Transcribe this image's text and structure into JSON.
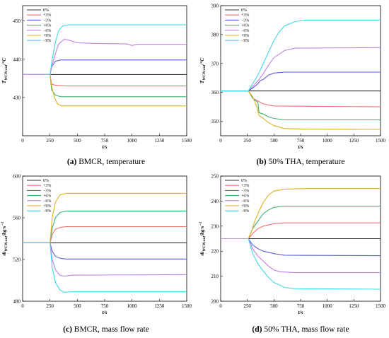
{
  "chart_data": [
    {
      "type": "line",
      "caption": {
        "letter": "(a)",
        "text": "BMCR, temperature"
      },
      "xlabel": "t/s",
      "ylabel": {
        "main": "T",
        "sub": "WCW,out",
        "unit": "/°C"
      },
      "xlim": [
        0,
        1500
      ],
      "ylim": [
        420,
        454
      ],
      "xticks": [
        0,
        250,
        500,
        750,
        1000,
        1250,
        1500
      ],
      "yticks": [
        430,
        440,
        450
      ],
      "legend_position": "top-left",
      "series": [
        {
          "name": "0%",
          "color": "#333333",
          "points": [
            [
              0,
              436
            ],
            [
              1500,
              436
            ]
          ]
        },
        {
          "name": "+3%",
          "color": "#f07070",
          "points": [
            [
              0,
              436
            ],
            [
              250,
              436
            ],
            [
              265,
              433.5
            ],
            [
              300,
              433.2
            ],
            [
              400,
              433
            ],
            [
              1500,
              433
            ]
          ]
        },
        {
          "name": "−3%",
          "color": "#5a5ad6",
          "points": [
            [
              0,
              436
            ],
            [
              250,
              436
            ],
            [
              265,
              438
            ],
            [
              300,
              439.5
            ],
            [
              350,
              439.8
            ],
            [
              1500,
              439.8
            ]
          ]
        },
        {
          "name": "+6%",
          "color": "#3cb371",
          "points": [
            [
              0,
              436
            ],
            [
              250,
              436
            ],
            [
              265,
              432
            ],
            [
              300,
              430.6
            ],
            [
              350,
              430.2
            ],
            [
              1500,
              430.2
            ]
          ]
        },
        {
          "name": "−6%",
          "color": "#c080e0",
          "points": [
            [
              0,
              436
            ],
            [
              250,
              436
            ],
            [
              275,
              439
            ],
            [
              300,
              441.5
            ],
            [
              330,
              444
            ],
            [
              380,
              445.2
            ],
            [
              420,
              445
            ],
            [
              500,
              444.3
            ],
            [
              700,
              444.1
            ],
            [
              950,
              444
            ],
            [
              1000,
              443.6
            ],
            [
              1050,
              443.9
            ],
            [
              1500,
              443.9
            ]
          ]
        },
        {
          "name": "+9%",
          "color": "#e0b020",
          "points": [
            [
              0,
              436
            ],
            [
              250,
              436
            ],
            [
              265,
              433
            ],
            [
              290,
              430
            ],
            [
              320,
              428.3
            ],
            [
              360,
              427.8
            ],
            [
              1500,
              427.8
            ]
          ]
        },
        {
          "name": "−9%",
          "color": "#40d8e8",
          "points": [
            [
              0,
              436
            ],
            [
              250,
              436
            ],
            [
              270,
              440
            ],
            [
              300,
              444.5
            ],
            [
              330,
              447.5
            ],
            [
              370,
              448.8
            ],
            [
              420,
              449
            ],
            [
              1500,
              449
            ]
          ]
        }
      ]
    },
    {
      "type": "line",
      "caption": {
        "letter": "(b)",
        "text": "50% THA, temperature"
      },
      "xlabel": "t/s",
      "ylabel": {
        "main": "T",
        "sub": "WCW,out",
        "unit": "/°C"
      },
      "xlim": [
        0,
        1500
      ],
      "ylim": [
        345,
        390
      ],
      "xticks": [
        0,
        250,
        500,
        750,
        1000,
        1250,
        1500
      ],
      "yticks": [
        350,
        360,
        370,
        380,
        390
      ],
      "legend_position": "top-left",
      "series": [
        {
          "name": "0%",
          "color": "#333333",
          "points": [
            [
              0,
              360.5
            ],
            [
              1500,
              360.5
            ]
          ]
        },
        {
          "name": "+3%",
          "color": "#f07070",
          "points": [
            [
              0,
              360.5
            ],
            [
              260,
              360.5
            ],
            [
              300,
              358
            ],
            [
              350,
              357
            ],
            [
              400,
              356
            ],
            [
              500,
              355.3
            ],
            [
              1500,
              355
            ]
          ]
        },
        {
          "name": "−3%",
          "color": "#5a5ad6",
          "points": [
            [
              0,
              360.5
            ],
            [
              260,
              360.5
            ],
            [
              300,
              361.5
            ],
            [
              350,
              363
            ],
            [
              370,
              364
            ],
            [
              400,
              364.5
            ],
            [
              450,
              366
            ],
            [
              500,
              366.7
            ],
            [
              600,
              367
            ],
            [
              1500,
              367
            ]
          ]
        },
        {
          "name": "+6%",
          "color": "#3cb371",
          "points": [
            [
              0,
              360.5
            ],
            [
              260,
              360.5
            ],
            [
              300,
              358
            ],
            [
              350,
              356.5
            ],
            [
              360,
              353
            ],
            [
              400,
              352.5
            ],
            [
              450,
              351.5
            ],
            [
              500,
              351
            ],
            [
              600,
              350.5
            ],
            [
              1500,
              350.5
            ]
          ]
        },
        {
          "name": "−6%",
          "color": "#c080e0",
          "points": [
            [
              0,
              360.5
            ],
            [
              260,
              360.5
            ],
            [
              300,
              362
            ],
            [
              350,
              364
            ],
            [
              400,
              366.5
            ],
            [
              450,
              369.5
            ],
            [
              500,
              372
            ],
            [
              600,
              374.5
            ],
            [
              700,
              375.3
            ],
            [
              1500,
              375.5
            ]
          ]
        },
        {
          "name": "+9%",
          "color": "#e0b020",
          "points": [
            [
              0,
              360.5
            ],
            [
              260,
              360.5
            ],
            [
              300,
              358.5
            ],
            [
              340,
              355
            ],
            [
              360,
              352
            ],
            [
              400,
              351
            ],
            [
              450,
              349.5
            ],
            [
              500,
              348.5
            ],
            [
              600,
              347.5
            ],
            [
              800,
              347.3
            ],
            [
              1500,
              347.2
            ]
          ]
        },
        {
          "name": "−9%",
          "color": "#40d8e8",
          "points": [
            [
              0,
              360.5
            ],
            [
              260,
              360.5
            ],
            [
              300,
              363
            ],
            [
              350,
              366
            ],
            [
              400,
              370
            ],
            [
              450,
              374
            ],
            [
              500,
              378
            ],
            [
              550,
              381
            ],
            [
              600,
              383
            ],
            [
              700,
              384.5
            ],
            [
              800,
              385
            ],
            [
              1500,
              385
            ]
          ]
        }
      ]
    },
    {
      "type": "line",
      "caption": {
        "letter": "(c)",
        "text": "BMCR, mass flow rate"
      },
      "xlabel": "t/s",
      "ylabel": {
        "main": "ṁ",
        "sub": "WCW,out",
        "unit": "/kg·s",
        "sup": "−1"
      },
      "xlim": [
        0,
        1500
      ],
      "ylim": [
        480,
        600
      ],
      "xticks": [
        0,
        250,
        500,
        750,
        1000,
        1250,
        1500
      ],
      "yticks": [
        480,
        520,
        560,
        600
      ],
      "legend_position": "top-left",
      "series": [
        {
          "name": "0%",
          "color": "#333333",
          "points": [
            [
              0,
              536
            ],
            [
              1500,
              536
            ]
          ]
        },
        {
          "name": "+3%",
          "color": "#f07070",
          "points": [
            [
              0,
              536
            ],
            [
              250,
              536
            ],
            [
              275,
              545
            ],
            [
              300,
              549
            ],
            [
              350,
              551
            ],
            [
              400,
              551.5
            ],
            [
              1500,
              551.5
            ]
          ]
        },
        {
          "name": "−3%",
          "color": "#5a5ad6",
          "points": [
            [
              0,
              536
            ],
            [
              250,
              536
            ],
            [
              270,
              528
            ],
            [
              300,
              523
            ],
            [
              350,
              521
            ],
            [
              400,
              520.5
            ],
            [
              1500,
              520.5
            ]
          ]
        },
        {
          "name": "+6%",
          "color": "#3cb371",
          "points": [
            [
              0,
              536
            ],
            [
              250,
              536
            ],
            [
              270,
              550
            ],
            [
              300,
              560
            ],
            [
              340,
              565
            ],
            [
              400,
              566.5
            ],
            [
              1500,
              566.5
            ]
          ]
        },
        {
          "name": "−6%",
          "color": "#c080e0",
          "points": [
            [
              0,
              536
            ],
            [
              250,
              536
            ],
            [
              270,
              520
            ],
            [
              300,
              510
            ],
            [
              340,
              505
            ],
            [
              380,
              504
            ],
            [
              450,
              505
            ],
            [
              1500,
              505.5
            ]
          ]
        },
        {
          "name": "+9%",
          "color": "#e0b020",
          "points": [
            [
              0,
              536
            ],
            [
              250,
              536
            ],
            [
              270,
              560
            ],
            [
              300,
              575
            ],
            [
              340,
              582
            ],
            [
              400,
              583.5
            ],
            [
              1500,
              583.5
            ]
          ]
        },
        {
          "name": "−9%",
          "color": "#40d8e8",
          "points": [
            [
              0,
              536
            ],
            [
              250,
              536
            ],
            [
              270,
              512
            ],
            [
              300,
              498
            ],
            [
              340,
              491
            ],
            [
              380,
              488.5
            ],
            [
              450,
              489
            ],
            [
              1500,
              489
            ]
          ]
        }
      ]
    },
    {
      "type": "line",
      "caption": {
        "letter": "(d)",
        "text": "50% THA, mass flow rate"
      },
      "xlabel": "t/s",
      "ylabel": {
        "main": "ṁ",
        "sub": "WCW,out",
        "unit": "/kg·s",
        "sup": "−1"
      },
      "xlim": [
        0,
        1500
      ],
      "ylim": [
        200,
        250
      ],
      "xticks": [
        0,
        250,
        500,
        750,
        1000,
        1250,
        1500
      ],
      "yticks": [
        200,
        210,
        220,
        230,
        240,
        250
      ],
      "legend_position": "top-left",
      "series": [
        {
          "name": "0%",
          "color": "#333333",
          "points": [
            [
              0,
              225
            ],
            [
              1500,
              225
            ]
          ]
        },
        {
          "name": "+3%",
          "color": "#f07070",
          "points": [
            [
              0,
              225
            ],
            [
              260,
              225
            ],
            [
              300,
              227
            ],
            [
              350,
              229
            ],
            [
              400,
              230
            ],
            [
              500,
              231
            ],
            [
              600,
              231.3
            ],
            [
              1500,
              231.3
            ]
          ]
        },
        {
          "name": "−3%",
          "color": "#5a5ad6",
          "points": [
            [
              0,
              225
            ],
            [
              260,
              225
            ],
            [
              300,
              222.5
            ],
            [
              350,
              221
            ],
            [
              400,
              220
            ],
            [
              500,
              219
            ],
            [
              600,
              218.4
            ],
            [
              1500,
              218.2
            ]
          ]
        },
        {
          "name": "+6%",
          "color": "#3cb371",
          "points": [
            [
              0,
              225
            ],
            [
              260,
              225
            ],
            [
              300,
              229
            ],
            [
              350,
              232
            ],
            [
              400,
              235
            ],
            [
              450,
              236.5
            ],
            [
              500,
              237.5
            ],
            [
              600,
              238
            ],
            [
              1500,
              238
            ]
          ]
        },
        {
          "name": "−6%",
          "color": "#c080e0",
          "points": [
            [
              0,
              225
            ],
            [
              260,
              225
            ],
            [
              300,
              221
            ],
            [
              350,
              218
            ],
            [
              400,
              216
            ],
            [
              450,
              214
            ],
            [
              500,
              212.5
            ],
            [
              550,
              211.8
            ],
            [
              700,
              211.4
            ],
            [
              1500,
              211.4
            ]
          ]
        },
        {
          "name": "+9%",
          "color": "#e0b020",
          "points": [
            [
              0,
              225
            ],
            [
              260,
              225
            ],
            [
              290,
              228
            ],
            [
              320,
              232
            ],
            [
              360,
              236
            ],
            [
              400,
              239.5
            ],
            [
              450,
              242.5
            ],
            [
              500,
              244
            ],
            [
              600,
              244.8
            ],
            [
              800,
              245
            ],
            [
              1500,
              245
            ]
          ]
        },
        {
          "name": "−9%",
          "color": "#40d8e8",
          "points": [
            [
              0,
              225
            ],
            [
              260,
              225
            ],
            [
              300,
              219
            ],
            [
              350,
              215
            ],
            [
              400,
              212
            ],
            [
              450,
              209.5
            ],
            [
              500,
              207.5
            ],
            [
              600,
              205.5
            ],
            [
              700,
              205
            ],
            [
              1500,
              204.8
            ]
          ]
        }
      ]
    }
  ]
}
